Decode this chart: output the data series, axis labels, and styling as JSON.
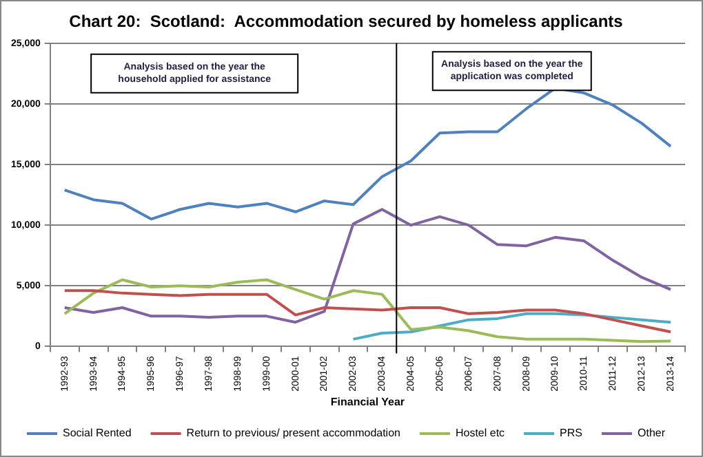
{
  "chart_data": {
    "type": "line",
    "title": "Chart 20:  Scotland:  Accommodation secured by homeless applicants",
    "xlabel": "Financial Year",
    "categories": [
      "1992-93",
      "1993-94",
      "1994-95",
      "1995-96",
      "1996-97",
      "1997-98",
      "1998-99",
      "1999-00",
      "2000-01",
      "2001-02",
      "2002-03",
      "2003-04",
      "2004-05",
      "2005-06",
      "2006-07",
      "2007-08",
      "2008-09",
      "2009-10",
      "2010-11",
      "2011-12",
      "2012-13",
      "2013-14"
    ],
    "series": [
      {
        "name": "Social Rented",
        "color": "#4f81bd",
        "values": [
          12900,
          12100,
          11800,
          10500,
          11300,
          11800,
          11500,
          11800,
          11100,
          12000,
          11700,
          14000,
          15300,
          17600,
          17700,
          17700,
          19600,
          21300,
          20900,
          19900,
          18400,
          16500
        ]
      },
      {
        "name": "Return to previous/ present accommodation",
        "color": "#c0504d",
        "values": [
          4600,
          4600,
          4400,
          4300,
          4200,
          4300,
          4300,
          4300,
          2600,
          3200,
          3100,
          3000,
          3200,
          3200,
          2700,
          2800,
          3000,
          3000,
          2700,
          2200,
          1700,
          1200
        ]
      },
      {
        "name": "Hostel etc",
        "color": "#9bbb59",
        "values": [
          2700,
          4400,
          5500,
          4900,
          5000,
          4900,
          5300,
          5500,
          4700,
          3900,
          4600,
          4300,
          1400,
          1600,
          1300,
          800,
          600,
          600,
          600,
          500,
          400,
          450
        ]
      },
      {
        "name": "PRS",
        "color": "#4bacc6",
        "values": [
          null,
          null,
          null,
          null,
          null,
          null,
          null,
          null,
          null,
          null,
          600,
          1100,
          1200,
          1700,
          2200,
          2300,
          2700,
          2700,
          2600,
          2400,
          2200,
          2000
        ]
      },
      {
        "name": "Other",
        "color": "#8064a2",
        "values": [
          3200,
          2800,
          3200,
          2500,
          2500,
          2400,
          2500,
          2500,
          2000,
          2900,
          10100,
          11300,
          10000,
          10700,
          10000,
          8400,
          8300,
          9000,
          8700,
          7100,
          5700,
          4700
        ]
      }
    ],
    "ylim": [
      0,
      25000
    ],
    "yticks": [
      {
        "value": 0,
        "label": "0"
      },
      {
        "value": 5000,
        "label": "5,000"
      },
      {
        "value": 10000,
        "label": "10,000"
      },
      {
        "value": 15000,
        "label": "15,000"
      },
      {
        "value": 20000,
        "label": "20,000"
      },
      {
        "value": 25000,
        "label": "25,000"
      }
    ],
    "grid": "y",
    "legend": "bottom",
    "marker": "none",
    "line_style": "solid",
    "ref_lines": [
      {
        "axis": "x",
        "value": "2004-05",
        "color": "#000000"
      }
    ],
    "annotations": [
      "Analysis based on the year the household applied for assistance",
      "Analysis based on the year the application was completed"
    ]
  }
}
